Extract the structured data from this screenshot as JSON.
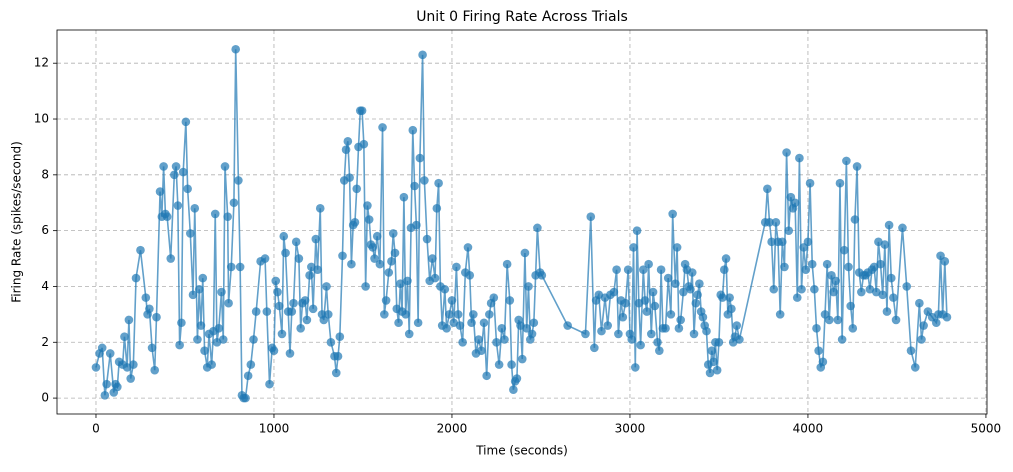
{
  "chart_data": {
    "type": "line",
    "title": "Unit 0 Firing Rate Across Trials",
    "x_label": "Time (seconds)",
    "y_label": "Firing Rate (spikes/second)",
    "x": [
      0,
      20,
      35,
      50,
      60,
      80,
      100,
      110,
      120,
      130,
      150,
      160,
      175,
      185,
      195,
      210,
      225,
      250,
      280,
      290,
      300,
      315,
      330,
      340,
      360,
      370,
      380,
      390,
      400,
      420,
      440,
      450,
      460,
      470,
      480,
      490,
      505,
      515,
      530,
      545,
      555,
      570,
      580,
      590,
      600,
      610,
      625,
      635,
      650,
      660,
      670,
      680,
      690,
      705,
      715,
      725,
      740,
      745,
      760,
      775,
      785,
      800,
      810,
      820,
      830,
      840,
      855,
      870,
      885,
      900,
      925,
      950,
      960,
      975,
      990,
      1000,
      1010,
      1020,
      1030,
      1045,
      1055,
      1065,
      1080,
      1090,
      1100,
      1110,
      1125,
      1140,
      1150,
      1160,
      1175,
      1185,
      1200,
      1210,
      1220,
      1235,
      1245,
      1260,
      1270,
      1280,
      1295,
      1305,
      1320,
      1340,
      1350,
      1360,
      1370,
      1385,
      1395,
      1405,
      1415,
      1425,
      1435,
      1445,
      1455,
      1465,
      1475,
      1485,
      1495,
      1505,
      1515,
      1525,
      1535,
      1545,
      1555,
      1565,
      1580,
      1595,
      1610,
      1620,
      1630,
      1645,
      1660,
      1670,
      1680,
      1690,
      1700,
      1710,
      1720,
      1730,
      1740,
      1750,
      1760,
      1770,
      1780,
      1790,
      1800,
      1810,
      1820,
      1835,
      1845,
      1860,
      1875,
      1890,
      1905,
      1915,
      1925,
      1935,
      1945,
      1960,
      1970,
      1985,
      2000,
      2010,
      2025,
      2035,
      2045,
      2060,
      2075,
      2090,
      2100,
      2110,
      2120,
      2135,
      2150,
      2165,
      2180,
      2195,
      2210,
      2220,
      2235,
      2250,
      2265,
      2280,
      2295,
      2310,
      2325,
      2335,
      2345,
      2355,
      2365,
      2375,
      2385,
      2395,
      2410,
      2420,
      2430,
      2440,
      2450,
      2460,
      2470,
      2480,
      2495,
      2505,
      2650,
      2750,
      2780,
      2800,
      2810,
      2825,
      2840,
      2860,
      2875,
      2890,
      2910,
      2925,
      2935,
      2950,
      2960,
      2975,
      2990,
      3000,
      3010,
      3020,
      3030,
      3040,
      3050,
      3060,
      3075,
      3085,
      3095,
      3105,
      3120,
      3130,
      3140,
      3155,
      3165,
      3175,
      3185,
      3200,
      3215,
      3230,
      3240,
      3255,
      3265,
      3275,
      3285,
      3300,
      3310,
      3320,
      3330,
      3340,
      3350,
      3360,
      3370,
      3380,
      3390,
      3400,
      3410,
      3420,
      3430,
      3440,
      3450,
      3460,
      3470,
      3480,
      3490,
      3500,
      3510,
      3520,
      3530,
      3540,
      3550,
      3560,
      3570,
      3580,
      3590,
      3600,
      3615,
      3760,
      3772,
      3784,
      3796,
      3808,
      3820,
      3832,
      3844,
      3856,
      3868,
      3880,
      3892,
      3904,
      3916,
      3928,
      3940,
      3952,
      3964,
      3976,
      3988,
      4000,
      4012,
      4024,
      4036,
      4048,
      4060,
      4072,
      4084,
      4096,
      4108,
      4120,
      4132,
      4144,
      4156,
      4168,
      4180,
      4192,
      4204,
      4216,
      4228,
      4240,
      4252,
      4264,
      4276,
      4288,
      4300,
      4312,
      4324,
      4336,
      4348,
      4360,
      4372,
      4384,
      4396,
      4408,
      4420,
      4432,
      4444,
      4456,
      4468,
      4480,
      4495,
      4531,
      4555,
      4579,
      4603,
      4626,
      4638,
      4650,
      4674,
      4698,
      4721,
      4733,
      4745,
      4757,
      4769,
      4781
    ],
    "series": [
      {
        "color": "#1f77b4",
        "values": [
          1.1,
          1.6,
          1.8,
          0.1,
          0.5,
          1.6,
          0.2,
          0.5,
          0.4,
          1.3,
          1.2,
          2.2,
          1.1,
          2.8,
          0.7,
          1.2,
          4.3,
          5.3,
          3.6,
          3.0,
          3.2,
          1.8,
          1.0,
          2.9,
          7.4,
          6.5,
          8.3,
          6.6,
          6.5,
          5.0,
          8.0,
          8.3,
          6.9,
          1.9,
          2.7,
          8.1,
          9.9,
          7.5,
          5.9,
          3.7,
          6.8,
          2.1,
          3.9,
          2.6,
          4.3,
          1.7,
          1.1,
          2.3,
          1.2,
          2.4,
          6.6,
          2.0,
          2.5,
          3.8,
          2.1,
          8.3,
          6.5,
          3.4,
          4.7,
          7.0,
          12.5,
          7.8,
          4.7,
          0.1,
          0.0,
          0.0,
          0.8,
          1.2,
          2.1,
          3.1,
          4.9,
          5.0,
          3.1,
          0.5,
          1.8,
          1.7,
          4.2,
          3.8,
          3.3,
          2.3,
          5.8,
          5.2,
          3.1,
          1.6,
          3.1,
          3.4,
          5.6,
          5.0,
          2.5,
          3.4,
          3.5,
          2.8,
          4.4,
          4.7,
          3.2,
          5.7,
          4.6,
          6.8,
          3.0,
          2.8,
          4.0,
          3.0,
          2.0,
          1.5,
          0.9,
          1.5,
          2.2,
          5.1,
          7.8,
          8.9,
          9.2,
          7.9,
          4.8,
          6.2,
          6.3,
          7.5,
          9.0,
          10.3,
          10.3,
          9.1,
          4.0,
          6.9,
          6.4,
          5.5,
          5.4,
          5.0,
          5.8,
          4.8,
          9.7,
          3.0,
          3.5,
          4.5,
          4.9,
          5.9,
          5.2,
          3.2,
          2.7,
          4.1,
          3.1,
          7.2,
          3.0,
          4.2,
          2.3,
          6.1,
          9.6,
          7.6,
          6.2,
          2.7,
          8.6,
          12.3,
          7.8,
          5.7,
          4.2,
          5.0,
          4.3,
          6.8,
          7.7,
          4.0,
          2.6,
          3.9,
          2.5,
          3.0,
          3.5,
          2.7,
          4.7,
          3.0,
          2.6,
          2.0,
          4.5,
          5.4,
          4.4,
          2.7,
          3.0,
          1.6,
          2.1,
          1.7,
          2.7,
          0.8,
          3.0,
          3.4,
          3.6,
          2.0,
          1.2,
          2.5,
          2.1,
          4.8,
          3.5,
          1.2,
          0.3,
          0.6,
          0.7,
          2.8,
          2.6,
          1.4,
          5.2,
          2.5,
          4.0,
          2.1,
          2.3,
          2.7,
          4.4,
          6.1,
          4.5,
          4.4,
          2.6,
          2.3,
          6.5,
          1.8,
          3.5,
          3.7,
          2.4,
          3.6,
          2.6,
          3.7,
          3.8,
          4.6,
          2.3,
          3.5,
          2.9,
          3.4,
          4.6,
          2.3,
          2.1,
          5.4,
          1.1,
          6.0,
          3.4,
          1.9,
          4.6,
          3.5,
          3.1,
          4.8,
          2.3,
          3.8,
          3.3,
          2.0,
          1.7,
          4.6,
          2.5,
          2.5,
          4.3,
          3.0,
          6.6,
          4.1,
          5.4,
          2.5,
          2.8,
          3.8,
          4.8,
          4.6,
          4.0,
          3.9,
          4.5,
          2.3,
          3.4,
          3.7,
          4.1,
          3.1,
          2.9,
          2.6,
          2.4,
          1.2,
          0.9,
          1.7,
          1.3,
          2.0,
          1.0,
          2.0,
          3.7,
          3.6,
          4.6,
          5.0,
          3.0,
          3.6,
          3.2,
          2.0,
          2.2,
          2.6,
          2.1,
          6.3,
          7.5,
          6.3,
          5.6,
          3.9,
          6.3,
          5.6,
          3.0,
          5.6,
          4.7,
          8.8,
          6.0,
          7.2,
          6.8,
          7.0,
          3.6,
          8.6,
          3.9,
          5.4,
          4.6,
          5.6,
          7.7,
          4.8,
          3.9,
          2.5,
          1.7,
          1.1,
          1.3,
          3.0,
          4.8,
          2.8,
          4.4,
          3.8,
          4.2,
          2.8,
          7.7,
          2.1,
          5.3,
          8.5,
          4.7,
          3.3,
          2.5,
          6.4,
          8.3,
          4.5,
          3.8,
          4.4,
          4.4,
          4.5,
          3.9,
          4.6,
          4.7,
          3.8,
          5.6,
          4.8,
          3.7,
          5.5,
          3.1,
          6.2,
          4.3,
          3.6,
          2.8,
          6.1,
          4.0,
          1.7,
          1.1,
          3.4,
          2.1,
          2.6,
          3.1,
          2.9,
          2.7,
          3.0,
          5.1,
          3.0,
          4.9,
          2.9
        ]
      }
    ],
    "xlim": [
      -219,
      5006
    ],
    "ylim": [
      -0.57,
      13.19
    ],
    "xticks": [
      0,
      1000,
      2000,
      3000,
      4000,
      5000
    ],
    "yticks": [
      0,
      2,
      4,
      6,
      8,
      10,
      12
    ],
    "grid": true
  }
}
